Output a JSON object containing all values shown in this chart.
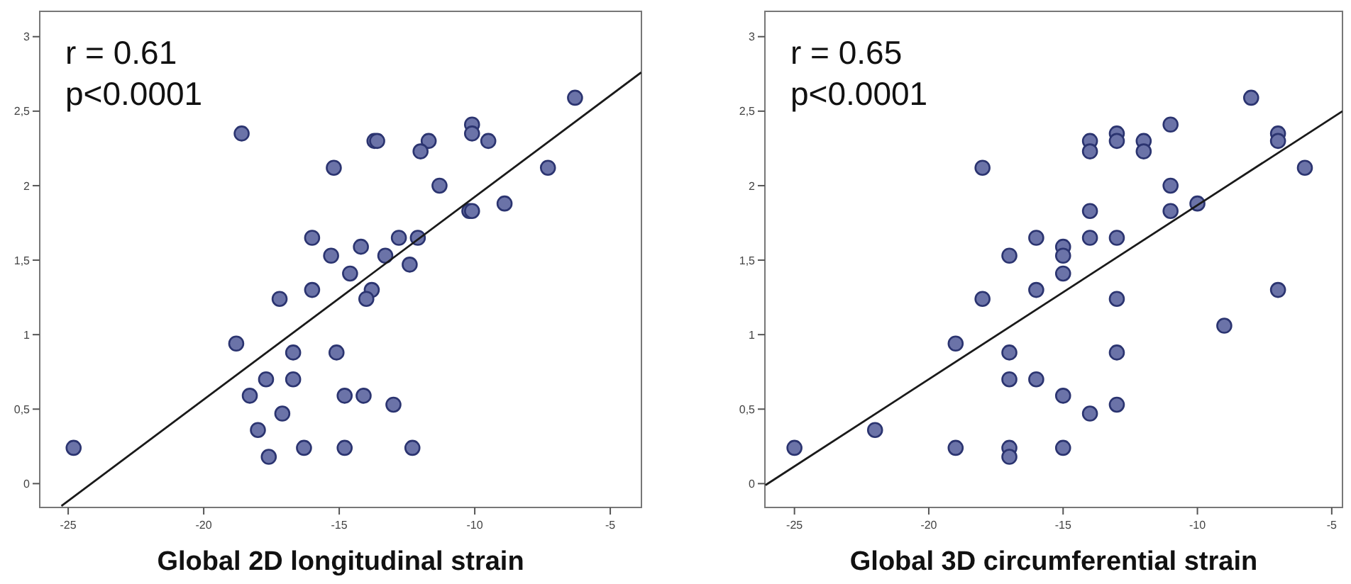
{
  "chart_data": [
    {
      "type": "scatter",
      "xlabel": "Global 2D longitudinal strain",
      "annotations": [
        "r = 0.61",
        "p<0.0001"
      ],
      "xlim": [
        -26.05,
        -3.85
      ],
      "ylim": [
        -0.16,
        3.17
      ],
      "xticks": [
        -25,
        -20,
        -15,
        -10,
        -5
      ],
      "yticks": [
        0,
        {
          "value": 0.5,
          "label": "0,5"
        },
        1,
        {
          "value": 1.5,
          "label": "1,5"
        },
        2,
        {
          "value": 2.5,
          "label": "2,5"
        },
        3
      ],
      "grid": false,
      "series": [
        {
          "marker": "circle",
          "color": "#6b73a8",
          "x": [
            -24.8,
            -18.6,
            -18.8,
            -17.2,
            -16.0,
            -16.0,
            -16.7,
            -17.7,
            -16.7,
            -18.3,
            -17.1,
            -18.0,
            -17.6,
            -16.3,
            -6.3,
            -10.1,
            -10.1,
            -9.5,
            -13.7,
            -13.6,
            -11.7,
            -12.0,
            -15.2,
            -7.3,
            -11.3,
            -8.9,
            -10.2,
            -10.1,
            -12.8,
            -12.1,
            -14.2,
            -15.3,
            -13.3,
            -12.4,
            -14.6,
            -13.8,
            -14.0,
            -15.1,
            -14.8,
            -14.1,
            -13.0,
            -14.8,
            -12.3
          ],
          "values": [
            0.24,
            2.35,
            0.94,
            1.24,
            1.65,
            1.3,
            0.88,
            0.7,
            0.7,
            0.59,
            0.47,
            0.36,
            0.18,
            0.24,
            2.59,
            2.41,
            2.35,
            2.3,
            2.3,
            2.3,
            2.3,
            2.23,
            2.12,
            2.12,
            2.0,
            1.88,
            1.83,
            1.83,
            1.65,
            1.65,
            1.59,
            1.53,
            1.53,
            1.47,
            1.41,
            1.3,
            1.24,
            0.88,
            0.59,
            0.59,
            0.53,
            0.24,
            0.24
          ]
        },
        {
          "type": "line",
          "color": "#1a1a1a",
          "x": [
            -25.25,
            -3.86
          ],
          "values": [
            -0.15,
            2.76
          ]
        }
      ]
    },
    {
      "type": "scatter",
      "xlabel": "Global 3D circumferential strain",
      "annotations": [
        "r = 0.65",
        "p<0.0001"
      ],
      "xlim": [
        -26.1,
        -4.6
      ],
      "ylim": [
        -0.16,
        3.17
      ],
      "xticks": [
        -25,
        -20,
        -15,
        -10,
        -5
      ],
      "yticks": [
        0,
        {
          "value": 0.5,
          "label": "0,5"
        },
        1,
        {
          "value": 1.5,
          "label": "1,5"
        },
        2,
        {
          "value": 2.5,
          "label": "2,5"
        },
        3
      ],
      "grid": false,
      "series": [
        {
          "marker": "circle",
          "color": "#6b73a8",
          "x": [
            -25,
            -22,
            -19,
            -19,
            -18,
            -18,
            -17,
            -17,
            -17,
            -17,
            -17,
            -16,
            -16,
            -16,
            -15,
            -15,
            -15,
            -15,
            -15,
            -14,
            -14,
            -14,
            -14,
            -14,
            -13,
            -13,
            -13,
            -13,
            -13,
            -13,
            -12,
            -12,
            -11,
            -11,
            -11,
            -10,
            -9,
            -8,
            -7,
            -7,
            -7,
            -6
          ],
          "values": [
            0.24,
            0.36,
            0.24,
            0.94,
            2.12,
            1.24,
            1.53,
            0.88,
            0.7,
            0.24,
            0.18,
            1.65,
            1.3,
            0.7,
            1.59,
            1.53,
            1.41,
            0.59,
            0.24,
            2.3,
            2.23,
            1.83,
            1.65,
            0.47,
            2.35,
            2.3,
            1.65,
            1.24,
            0.88,
            0.53,
            2.3,
            2.23,
            2.41,
            2.0,
            1.83,
            1.88,
            1.06,
            2.59,
            2.35,
            2.3,
            1.3,
            2.12
          ]
        },
        {
          "type": "line",
          "color": "#1a1a1a",
          "x": [
            -26.08,
            -4.6
          ],
          "values": [
            -0.01,
            2.5
          ]
        }
      ]
    }
  ]
}
